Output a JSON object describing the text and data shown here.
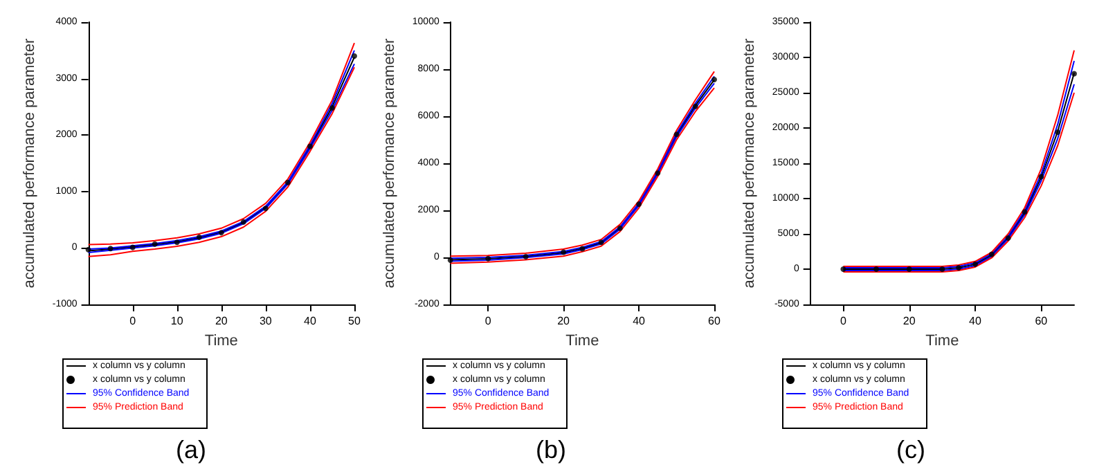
{
  "chart_data": [
    {
      "type": "line",
      "xlabel": "Time",
      "ylabel": "accumulated performance parameter",
      "annotations": [
        "(a)"
      ],
      "xlim": [
        -10,
        50
      ],
      "xticks": [
        0,
        10,
        20,
        30,
        40,
        50
      ],
      "ylim": [
        -1000,
        4000
      ],
      "yticks": [
        -1000,
        0,
        1000,
        2000,
        3000,
        4000
      ],
      "legend": "bottom left",
      "series": [
        {
          "name": "x column vs y column",
          "color": "#000000",
          "x": [
            -10,
            -5,
            0,
            5,
            10,
            15,
            20,
            25,
            30,
            35,
            40,
            45,
            50
          ],
          "values": [
            -50,
            -20,
            20,
            60,
            110,
            180,
            280,
            450,
            720,
            1150,
            1790,
            2500,
            3380
          ]
        },
        {
          "name": "x column vs y column",
          "type": "scatter",
          "marker": "circle",
          "color": "#000000",
          "x": [
            -10,
            -5,
            0,
            5,
            10,
            15,
            20,
            25,
            30,
            35,
            40,
            45,
            50
          ],
          "values": [
            -30,
            -10,
            10,
            70,
            100,
            190,
            270,
            460,
            700,
            1160,
            1800,
            2480,
            3400
          ]
        },
        {
          "name": "95% Confidence Band",
          "color": "#0000ff",
          "x": [
            -10,
            -5,
            0,
            5,
            10,
            15,
            20,
            25,
            30,
            35,
            40,
            45,
            50
          ],
          "values": [
            -20,
            0,
            40,
            80,
            130,
            200,
            300,
            470,
            740,
            1170,
            1820,
            2560,
            3500
          ]
        },
        {
          "color": "#0000ff",
          "x": [
            -10,
            -5,
            0,
            5,
            10,
            15,
            20,
            25,
            30,
            35,
            40,
            45,
            50
          ],
          "values": [
            -80,
            -40,
            0,
            40,
            90,
            160,
            260,
            430,
            700,
            1130,
            1760,
            2440,
            3260
          ]
        },
        {
          "name": "95% Prediction Band",
          "color": "#ff0000",
          "x": [
            -10,
            -5,
            0,
            5,
            10,
            15,
            20,
            25,
            30,
            35,
            40,
            45,
            50
          ],
          "values": [
            60,
            70,
            90,
            130,
            180,
            250,
            350,
            520,
            790,
            1220,
            1870,
            2620,
            3630
          ]
        },
        {
          "color": "#ff0000",
          "x": [
            -10,
            -5,
            0,
            5,
            10,
            15,
            20,
            25,
            30,
            35,
            40,
            45,
            50
          ],
          "values": [
            -150,
            -120,
            -60,
            -20,
            30,
            100,
            200,
            370,
            650,
            1080,
            1710,
            2380,
            3200
          ]
        }
      ]
    },
    {
      "type": "line",
      "xlabel": "Time",
      "ylabel": "accumulated performance parameter",
      "annotations": [
        "(b)"
      ],
      "xlim": [
        -10,
        60
      ],
      "xticks": [
        0,
        20,
        40,
        60
      ],
      "ylim": [
        -2000,
        10000
      ],
      "yticks": [
        -2000,
        0,
        2000,
        4000,
        6000,
        8000,
        10000
      ],
      "legend": "bottom left",
      "series": [
        {
          "name": "x column vs y column",
          "color": "#000000",
          "x": [
            -10,
            0,
            10,
            20,
            25,
            30,
            35,
            40,
            45,
            50,
            55,
            60
          ],
          "values": [
            -100,
            -60,
            40,
            200,
            380,
            620,
            1250,
            2250,
            3600,
            5200,
            6450,
            7550
          ]
        },
        {
          "name": "x column vs y column",
          "type": "scatter",
          "marker": "circle",
          "color": "#000000",
          "x": [
            -10,
            0,
            10,
            20,
            25,
            30,
            35,
            40,
            45,
            50,
            55,
            60
          ],
          "values": [
            -120,
            -50,
            30,
            220,
            370,
            640,
            1240,
            2260,
            3580,
            5230,
            6420,
            7560
          ]
        },
        {
          "name": "95% Confidence Band",
          "color": "#0000ff",
          "x": [
            -10,
            0,
            10,
            20,
            25,
            30,
            35,
            40,
            45,
            50,
            55,
            60
          ],
          "values": [
            -40,
            0,
            90,
            250,
            430,
            670,
            1300,
            2300,
            3660,
            5280,
            6550,
            7700
          ]
        },
        {
          "color": "#0000ff",
          "x": [
            -10,
            0,
            10,
            20,
            25,
            30,
            35,
            40,
            45,
            50,
            55,
            60
          ],
          "values": [
            -160,
            -120,
            -10,
            150,
            330,
            570,
            1200,
            2200,
            3540,
            5120,
            6350,
            7400
          ]
        },
        {
          "name": "95% Prediction Band",
          "color": "#ff0000",
          "x": [
            -10,
            0,
            10,
            20,
            25,
            30,
            35,
            40,
            45,
            50,
            55,
            60
          ],
          "values": [
            50,
            80,
            180,
            350,
            520,
            760,
            1400,
            2400,
            3760,
            5400,
            6700,
            7900
          ]
        },
        {
          "color": "#ff0000",
          "x": [
            -10,
            0,
            10,
            20,
            25,
            30,
            35,
            40,
            45,
            50,
            55,
            60
          ],
          "values": [
            -250,
            -200,
            -100,
            50,
            240,
            480,
            1100,
            2100,
            3440,
            5000,
            6200,
            7200
          ]
        }
      ]
    },
    {
      "type": "line",
      "xlabel": "Time",
      "ylabel": "accumulated performance parameter",
      "annotations": [
        "(c)"
      ],
      "xlim": [
        -10,
        70
      ],
      "xticks": [
        0,
        20,
        40,
        60
      ],
      "ylim": [
        -5000,
        35000
      ],
      "yticks": [
        -5000,
        0,
        5000,
        10000,
        15000,
        20000,
        25000,
        30000,
        35000
      ],
      "legend": "bottom left",
      "series": [
        {
          "name": "x column vs y column",
          "color": "#000000",
          "x": [
            0,
            10,
            20,
            30,
            35,
            40,
            45,
            50,
            55,
            60,
            65,
            70
          ],
          "values": [
            0,
            0,
            0,
            0,
            200,
            700,
            2000,
            4500,
            8000,
            13000,
            19500,
            27800
          ]
        },
        {
          "name": "x column vs y column",
          "type": "scatter",
          "marker": "circle",
          "color": "#000000",
          "x": [
            0,
            10,
            20,
            30,
            35,
            40,
            45,
            50,
            55,
            60,
            65,
            70
          ],
          "values": [
            0,
            0,
            0,
            0,
            200,
            700,
            2100,
            4400,
            8100,
            13100,
            19400,
            27700
          ]
        },
        {
          "name": "95% Confidence Band",
          "color": "#0000ff",
          "x": [
            0,
            10,
            20,
            30,
            35,
            40,
            45,
            50,
            55,
            60,
            65,
            70
          ],
          "values": [
            200,
            200,
            200,
            200,
            400,
            900,
            2200,
            4700,
            8300,
            13500,
            20500,
            29500
          ]
        },
        {
          "color": "#0000ff",
          "x": [
            0,
            10,
            20,
            30,
            35,
            40,
            45,
            50,
            55,
            60,
            65,
            70
          ],
          "values": [
            -200,
            -200,
            -200,
            -200,
            0,
            500,
            1800,
            4300,
            7700,
            12500,
            18500,
            26200
          ]
        },
        {
          "name": "95% Prediction Band",
          "color": "#ff0000",
          "x": [
            0,
            10,
            20,
            30,
            35,
            40,
            45,
            50,
            55,
            60,
            65,
            70
          ],
          "values": [
            400,
            400,
            400,
            400,
            600,
            1100,
            2400,
            5000,
            8700,
            14200,
            21800,
            31000
          ]
        },
        {
          "color": "#ff0000",
          "x": [
            0,
            10,
            20,
            30,
            35,
            40,
            45,
            50,
            55,
            60,
            65,
            70
          ],
          "values": [
            -400,
            -400,
            -400,
            -400,
            -200,
            300,
            1600,
            4000,
            7300,
            11800,
            17500,
            25000
          ]
        }
      ]
    }
  ]
}
